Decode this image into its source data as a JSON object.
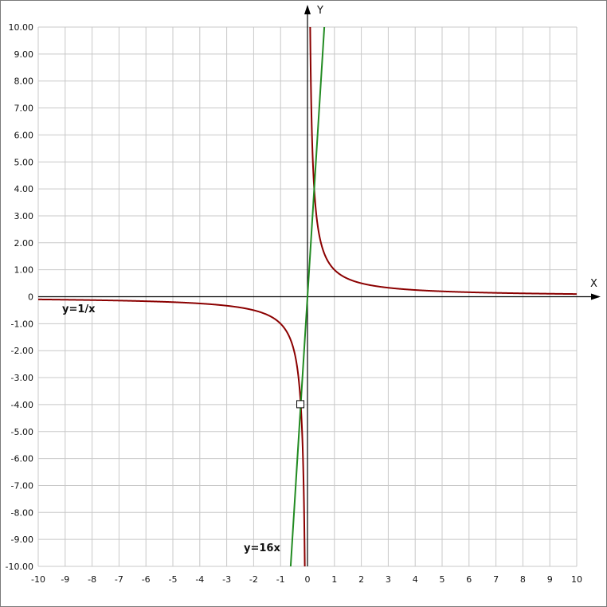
{
  "chart_data": {
    "type": "line",
    "title": "",
    "xlabel": "X",
    "ylabel": "Y",
    "xlim": [
      -10,
      10
    ],
    "ylim": [
      -10,
      10
    ],
    "grid": true,
    "x_ticks": [
      -10,
      -9,
      -8,
      -7,
      -6,
      -5,
      -4,
      -3,
      -2,
      -1,
      0,
      1,
      2,
      3,
      4,
      5,
      6,
      7,
      8,
      9,
      10
    ],
    "x_tick_labels": [
      "-10",
      "-9",
      "-8",
      "-7",
      "-6",
      "-5",
      "-4",
      "-3",
      "-2",
      "-1",
      "0",
      "1",
      "2",
      "3",
      "4",
      "5",
      "6",
      "7",
      "8",
      "9",
      "10"
    ],
    "y_ticks": [
      10,
      9,
      8,
      7,
      6,
      5,
      4,
      3,
      2,
      1,
      0,
      -1,
      -2,
      -3,
      -4,
      -5,
      -6,
      -7,
      -8,
      -9,
      -10
    ],
    "y_tick_labels": [
      "10.00",
      "9.00",
      "8.00",
      "7.00",
      "6.00",
      "5.00",
      "4.00",
      "3.00",
      "2.00",
      "1.00",
      "0",
      "-1.00",
      "-2.00",
      "-3.00",
      "-4.00",
      "-5.00",
      "-6.00",
      "-7.00",
      "-8.00",
      "-9.00",
      "-10.00"
    ],
    "series": [
      {
        "name": "y=1/x",
        "formula": "1/x",
        "color": "#8b0000"
      },
      {
        "name": "y=16x",
        "formula": "16x",
        "color": "#228b22"
      }
    ],
    "marker": {
      "x": -0.25,
      "y": -4,
      "shape": "square"
    },
    "axis_color": "#000000",
    "grid_color": "#c8c8c8"
  }
}
